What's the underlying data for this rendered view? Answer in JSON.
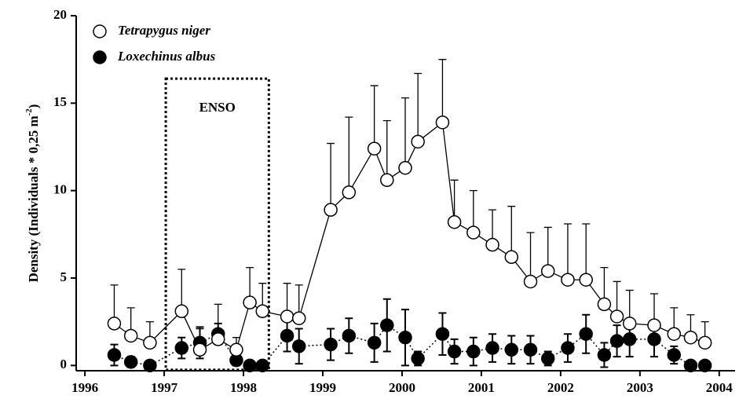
{
  "chart_data": {
    "type": "line",
    "y_label": {
      "text": "Density (Individuals * 0,25 m",
      "superscript": "-2",
      "suffix": ")"
    },
    "x": [
      1996.37,
      1996.58,
      1996.82,
      1997.22,
      1997.45,
      1997.68,
      1997.91,
      1998.08,
      1998.24,
      1998.55,
      1998.7,
      1999.1,
      1999.33,
      1999.65,
      1999.81,
      2000.04,
      2000.2,
      2000.51,
      2000.66,
      2000.9,
      2001.14,
      2001.38,
      2001.62,
      2001.84,
      2002.09,
      2002.32,
      2002.55,
      2002.71,
      2002.87,
      2003.18,
      2003.43,
      2003.64,
      2003.82
    ],
    "series": [
      {
        "name": "Tetrapygus niger",
        "color": "#000000",
        "marker": "open",
        "line": "solid",
        "values": [
          2.4,
          1.7,
          1.3,
          3.1,
          0.9,
          1.5,
          0.9,
          3.6,
          3.1,
          2.8,
          2.7,
          8.9,
          9.9,
          12.4,
          10.6,
          11.3,
          12.8,
          13.9,
          8.2,
          7.6,
          6.9,
          6.2,
          4.8,
          5.4,
          4.9,
          4.9,
          3.5,
          2.8,
          2.4,
          2.3,
          1.8,
          1.6,
          1.3
        ],
        "errors": [
          2.2,
          1.6,
          1.2,
          2.4,
          1.2,
          2.0,
          0.7,
          2.0,
          1.6,
          1.9,
          1.9,
          3.8,
          4.3,
          3.6,
          3.4,
          4.0,
          3.9,
          3.6,
          2.4,
          2.4,
          2.0,
          2.9,
          2.8,
          2.5,
          3.2,
          3.2,
          2.1,
          2.0,
          1.9,
          1.8,
          1.5,
          1.3,
          1.2
        ]
      },
      {
        "name": "Loxechinus albus",
        "color": "#000000",
        "marker": "filled",
        "line": "dotted",
        "values": [
          0.6,
          0.2,
          0.0,
          1.0,
          1.3,
          1.8,
          0.3,
          0.0,
          0.0,
          1.7,
          1.1,
          1.2,
          1.7,
          1.3,
          2.3,
          1.6,
          0.4,
          1.8,
          0.8,
          0.8,
          1.0,
          0.9,
          0.9,
          0.4,
          1.0,
          1.8,
          0.6,
          1.4,
          1.5,
          1.5,
          0.6,
          0.0,
          0.0
        ],
        "errors": [
          0.6,
          0.3,
          0.0,
          0.6,
          0.9,
          0.6,
          0.3,
          0.0,
          0.0,
          0.9,
          1.0,
          0.9,
          1.0,
          1.1,
          1.5,
          1.6,
          0.4,
          1.2,
          0.7,
          0.8,
          0.8,
          0.8,
          0.8,
          0.4,
          0.8,
          1.1,
          0.7,
          0.9,
          1.0,
          1.0,
          0.5,
          0.0,
          0.0
        ]
      }
    ],
    "annotation": {
      "text": "ENSO",
      "x": [
        1997.02,
        1998.32
      ],
      "y": [
        -0.25,
        16.4
      ]
    },
    "xlim": [
      1995.89,
      2004.2
    ],
    "xticks": [
      1996,
      1997,
      1998,
      1999,
      2000,
      2001,
      2002,
      2003,
      2004
    ],
    "ylim": [
      -0.3,
      20
    ],
    "yticks": [
      0,
      5,
      10,
      15,
      20
    ],
    "legend": "upper-left"
  }
}
